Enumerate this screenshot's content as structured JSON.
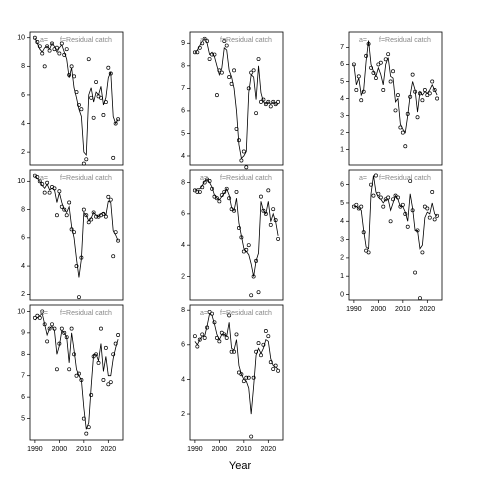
{
  "xlabel": "Year",
  "chart_data": [
    {
      "type": "line",
      "label": "a=",
      "annotation": "f=Residual catch",
      "xlim": [
        1988,
        2026
      ],
      "ylim": [
        1.1,
        10.4
      ],
      "yticks": [
        2,
        4,
        6,
        8,
        10
      ],
      "x": [
        1990,
        1991,
        1992,
        1993,
        1994,
        1995,
        1996,
        1997,
        1998,
        1999,
        2000,
        2001,
        2002,
        2003,
        2004,
        2005,
        2006,
        2007,
        2008,
        2009,
        2010,
        2011,
        2012,
        2013,
        2014,
        2015,
        2016,
        2017,
        2018,
        2019,
        2020,
        2021,
        2022,
        2023,
        2024
      ],
      "series": [
        {
          "style": "points",
          "color": "#000000",
          "values": [
            10,
            9.7,
            9.4,
            8.9,
            8,
            9.4,
            9.1,
            9.6,
            9.2,
            9.3,
            8.9,
            9.6,
            8.8,
            9.2,
            7.4,
            8,
            7.3,
            6.2,
            5.3,
            5,
            1.2,
            1.5,
            8.5,
            5.8,
            4.4,
            6.9,
            5.9,
            5.8,
            4.6,
            5.5,
            7.9,
            7.5,
            1.6,
            4,
            4.3
          ]
        },
        {
          "style": "line",
          "color": "#000000",
          "values": [
            10,
            9.6,
            9.2,
            9,
            9.3,
            9.4,
            9.2,
            9.6,
            9.4,
            9,
            9.3,
            9.5,
            9,
            8.5,
            7.2,
            7.9,
            6.5,
            5.8,
            5,
            4.5,
            2,
            1.8,
            6,
            6.5,
            5.5,
            6.2,
            6,
            6.6,
            5.3,
            5.8,
            7.2,
            7.6,
            4.5,
            4,
            4.3
          ]
        }
      ]
    },
    {
      "type": "line",
      "label": "a=",
      "annotation": "f=Residual catch",
      "xlim": [
        1988,
        2026
      ],
      "ylim": [
        3.6,
        9.5
      ],
      "yticks": [
        4,
        5,
        6,
        7,
        8,
        9
      ],
      "x": [
        1990,
        1991,
        1992,
        1993,
        1994,
        1995,
        1996,
        1997,
        1998,
        1999,
        2000,
        2001,
        2002,
        2003,
        2004,
        2005,
        2006,
        2007,
        2008,
        2009,
        2010,
        2011,
        2012,
        2013,
        2014,
        2015,
        2016,
        2017,
        2018,
        2019,
        2020,
        2021,
        2022,
        2023,
        2024
      ],
      "series": [
        {
          "style": "points",
          "color": "#000000",
          "values": [
            8.6,
            8.6,
            8.8,
            9,
            9.2,
            9.1,
            8.3,
            8.5,
            8.5,
            6.7,
            7.8,
            7.7,
            9.1,
            8.9,
            7.5,
            7.2,
            7.8,
            5.2,
            4.7,
            3.8,
            4.2,
            3.5,
            7,
            7.7,
            7.8,
            5.9,
            8.3,
            6.4,
            6.5,
            6.3,
            6.4,
            6.2,
            6.4,
            6.3,
            6.4
          ]
        },
        {
          "style": "line",
          "color": "#000000",
          "values": [
            8.6,
            8.7,
            8.9,
            9.1,
            9.2,
            9,
            8.5,
            8.6,
            8.4,
            8,
            7.6,
            7.9,
            8.8,
            8.7,
            7.8,
            7.5,
            7,
            6,
            4.5,
            3.9,
            4,
            4.2,
            6.8,
            7.6,
            7.5,
            6.5,
            8,
            6.8,
            6.4,
            6.3,
            6.4,
            6.3,
            6.4,
            6.3,
            6.3
          ]
        }
      ]
    },
    {
      "type": "line",
      "label": "a=",
      "annotation": "f=Residual catch",
      "xlim": [
        1988,
        2026
      ],
      "ylim": [
        0.1,
        7.9
      ],
      "yticks": [
        1,
        2,
        3,
        4,
        5,
        6,
        7
      ],
      "x": [
        1990,
        1991,
        1992,
        1993,
        1994,
        1995,
        1996,
        1997,
        1998,
        1999,
        2000,
        2001,
        2002,
        2003,
        2004,
        2005,
        2006,
        2007,
        2008,
        2009,
        2010,
        2011,
        2012,
        2013,
        2014,
        2015,
        2016,
        2017,
        2018,
        2019,
        2020,
        2021,
        2022,
        2023,
        2024
      ],
      "series": [
        {
          "style": "points",
          "color": "#000000",
          "values": [
            6,
            4.5,
            5.3,
            3.9,
            4.4,
            6.5,
            7.2,
            5.8,
            5.5,
            5.2,
            6,
            6.1,
            4.5,
            6.3,
            6.6,
            5,
            5.6,
            3.3,
            4.2,
            2.3,
            2,
            1.2,
            3.1,
            4.1,
            5.4,
            4.4,
            2.9,
            4.3,
            3.9,
            4.5,
            4.2,
            4.3,
            5,
            4.5,
            4
          ]
        },
        {
          "style": "line",
          "color": "#000000",
          "values": [
            6,
            4.8,
            5.2,
            4.2,
            4.5,
            6.2,
            7.4,
            6,
            5.6,
            5.3,
            5.8,
            5.4,
            4.8,
            6,
            6.4,
            5.3,
            5.2,
            3.8,
            4,
            2.5,
            2.2,
            2,
            3,
            4.2,
            5,
            4.5,
            3.2,
            4.4,
            4.2,
            4.4,
            4.3,
            4.5,
            4.8,
            4.5,
            4.2
          ]
        }
      ]
    },
    {
      "type": "line",
      "label": "a=",
      "annotation": "f=Residual catch",
      "xlim": [
        1988,
        2026
      ],
      "ylim": [
        1.6,
        10.8
      ],
      "yticks": [
        2,
        4,
        6,
        8,
        10
      ],
      "x": [
        1990,
        1991,
        1992,
        1993,
        1994,
        1995,
        1996,
        1997,
        1998,
        1999,
        2000,
        2001,
        2002,
        2003,
        2004,
        2005,
        2006,
        2007,
        2008,
        2009,
        2010,
        2011,
        2012,
        2013,
        2014,
        2015,
        2016,
        2017,
        2018,
        2019,
        2020,
        2021,
        2022,
        2023,
        2024
      ],
      "series": [
        {
          "style": "points",
          "color": "#000000",
          "values": [
            10.4,
            10.3,
            10,
            9.8,
            9.2,
            9.9,
            9.2,
            9.6,
            9.5,
            7.6,
            9.3,
            8.2,
            8,
            7.6,
            8.5,
            6.6,
            6.4,
            4,
            1.8,
            4.6,
            8,
            7.6,
            7.1,
            7.3,
            7.8,
            7.5,
            7.5,
            7.6,
            7.7,
            7.5,
            8.9,
            8.7,
            4.7,
            6.4,
            5.8
          ]
        },
        {
          "style": "line",
          "color": "#000000",
          "values": [
            10.4,
            10.2,
            10,
            9.7,
            9.5,
            9.8,
            9.4,
            9.5,
            9.4,
            8.5,
            9.2,
            8.5,
            8,
            7.8,
            8.2,
            6.8,
            6,
            4.5,
            3.2,
            4.5,
            7.8,
            7.6,
            7.2,
            7.4,
            7.8,
            7.6,
            7.5,
            7.7,
            7.8,
            7.6,
            8.6,
            8.5,
            6.5,
            6.2,
            5.8
          ]
        }
      ]
    },
    {
      "type": "line",
      "label": "a=",
      "annotation": "f=Residual catch",
      "xlim": [
        1988,
        2026
      ],
      "ylim": [
        0.5,
        8.8
      ],
      "yticks": [
        2,
        4,
        6,
        8
      ],
      "x": [
        1990,
        1991,
        1992,
        1993,
        1994,
        1995,
        1996,
        1997,
        1998,
        1999,
        2000,
        2001,
        2002,
        2003,
        2004,
        2005,
        2006,
        2007,
        2008,
        2009,
        2010,
        2011,
        2012,
        2013,
        2014,
        2015,
        2016,
        2017,
        2018,
        2019,
        2020,
        2021,
        2022,
        2023,
        2024
      ],
      "series": [
        {
          "style": "points",
          "color": "#000000",
          "values": [
            7.5,
            7.4,
            7.4,
            7.7,
            8,
            8.2,
            8.1,
            7.6,
            7.1,
            7,
            6.8,
            7.2,
            7.4,
            7.6,
            7,
            6.3,
            6.2,
            7.4,
            5.1,
            4.5,
            3.6,
            3.7,
            4,
            0.8,
            2,
            3,
            1,
            7.1,
            6.2,
            6,
            7.5,
            5.3,
            6.3,
            5.6,
            4.4
          ]
        },
        {
          "style": "line",
          "color": "#000000",
          "values": [
            7.5,
            7.6,
            7.6,
            7.8,
            8.1,
            8.2,
            8,
            7.7,
            7.2,
            7,
            6.9,
            7.1,
            7.3,
            7.6,
            7.2,
            6.4,
            6.2,
            7,
            5.4,
            4.6,
            3.8,
            3.6,
            3.4,
            2.8,
            2,
            3,
            3.5,
            6.8,
            6.2,
            6,
            6.8,
            5.5,
            6,
            5.5,
            4.6
          ]
        }
      ]
    },
    {
      "type": "line",
      "label": "a=",
      "annotation": "f=Residual catch",
      "xlim": [
        1988,
        2026
      ],
      "ylim": [
        -0.3,
        6.8
      ],
      "yticks": [
        0,
        1,
        2,
        3,
        4,
        5,
        6
      ],
      "xticks": [
        1990,
        2000,
        2010,
        2020
      ],
      "x": [
        1990,
        1991,
        1992,
        1993,
        1994,
        1995,
        1996,
        1997,
        1998,
        1999,
        2000,
        2001,
        2002,
        2003,
        2004,
        2005,
        2006,
        2007,
        2008,
        2009,
        2010,
        2011,
        2012,
        2013,
        2014,
        2015,
        2016,
        2017,
        2018,
        2019,
        2020,
        2021,
        2022,
        2023,
        2024
      ],
      "series": [
        {
          "style": "points",
          "color": "#000000",
          "values": [
            4.8,
            4.9,
            4.7,
            4.8,
            3.4,
            2.4,
            2.3,
            6,
            5.4,
            6.5,
            5.5,
            5.3,
            4.8,
            5.2,
            5.3,
            4,
            5.2,
            5.4,
            5.3,
            4.8,
            4.9,
            4.4,
            3.7,
            6.2,
            4.6,
            1.2,
            3.5,
            -0.2,
            2.3,
            4.8,
            4.7,
            4.2,
            5.6,
            4.1,
            4.3
          ]
        },
        {
          "style": "line",
          "color": "#000000",
          "values": [
            4.8,
            4.8,
            4.7,
            4.6,
            3.5,
            2.6,
            2.5,
            5.5,
            6.5,
            5.6,
            5.3,
            5.2,
            5,
            5.2,
            5.2,
            4.6,
            5,
            5.4,
            5.2,
            4.8,
            4.8,
            4.5,
            4,
            5.5,
            4.7,
            3.5,
            3.5,
            2.5,
            2.7,
            4.2,
            4.5,
            4.4,
            5,
            4.4,
            4.3
          ]
        }
      ]
    },
    {
      "type": "line",
      "label": "a=",
      "annotation": "f=Residual catch",
      "xlim": [
        1988,
        2026
      ],
      "ylim": [
        4,
        10.3
      ],
      "yticks": [
        5,
        6,
        7,
        8,
        9,
        10
      ],
      "xticks": [
        1990,
        2000,
        2010,
        2020
      ],
      "x": [
        1990,
        1991,
        1992,
        1993,
        1994,
        1995,
        1996,
        1997,
        1998,
        1999,
        2000,
        2001,
        2002,
        2003,
        2004,
        2005,
        2006,
        2007,
        2008,
        2009,
        2010,
        2011,
        2012,
        2013,
        2014,
        2015,
        2016,
        2017,
        2018,
        2019,
        2020,
        2021,
        2022,
        2023,
        2024
      ],
      "series": [
        {
          "style": "points",
          "color": "#000000",
          "values": [
            9.7,
            9.8,
            9.7,
            10,
            9.4,
            8.6,
            9.2,
            9.4,
            9.2,
            7.3,
            8.5,
            9.2,
            9,
            8.8,
            7.3,
            9.2,
            8,
            7,
            7.1,
            6.8,
            5,
            4.3,
            4.6,
            6.1,
            7.9,
            8,
            7.6,
            9.2,
            6.8,
            8.3,
            6.6,
            6.7,
            8,
            8.5,
            8.9
          ]
        },
        {
          "style": "line",
          "color": "#000000",
          "values": [
            9.6,
            9.7,
            9.8,
            9.9,
            9.4,
            8.9,
            9.2,
            9.3,
            9.1,
            8,
            8.4,
            9.1,
            9,
            8.8,
            7.6,
            9,
            8.2,
            7.3,
            7,
            6.8,
            5.5,
            4.5,
            4.8,
            6.5,
            8,
            8,
            7.7,
            8.5,
            7.2,
            7.9,
            7,
            7,
            7.8,
            8.3,
            8.7
          ]
        }
      ]
    },
    {
      "type": "line",
      "label": "a=",
      "annotation": "f=Residual catch",
      "xlim": [
        1988,
        2026
      ],
      "ylim": [
        0.5,
        8.3
      ],
      "yticks": [
        2,
        4,
        6,
        8
      ],
      "xticks": [
        1990,
        2000,
        2010,
        2020
      ],
      "x": [
        1990,
        1991,
        1992,
        1993,
        1994,
        1995,
        1996,
        1997,
        1998,
        1999,
        2000,
        2001,
        2002,
        2003,
        2004,
        2005,
        2006,
        2007,
        2008,
        2009,
        2010,
        2011,
        2012,
        2013,
        2014,
        2015,
        2016,
        2017,
        2018,
        2019,
        2020,
        2021,
        2022,
        2023,
        2024
      ],
      "series": [
        {
          "style": "points",
          "color": "#000000",
          "values": [
            6.5,
            5.9,
            6.3,
            6.6,
            6.4,
            7,
            7.9,
            7.8,
            7.3,
            6.4,
            6.2,
            6.7,
            6.6,
            6.4,
            7.7,
            5.6,
            5.6,
            6.6,
            4.4,
            4.3,
            3.9,
            4.1,
            4.1,
            0.7,
            4.1,
            5.6,
            6.1,
            5.4,
            6,
            6.8,
            6.5,
            5,
            4.6,
            4.8,
            4.5
          ]
        },
        {
          "style": "line",
          "color": "#000000",
          "values": [
            6.2,
            6,
            6.3,
            6.5,
            6.5,
            7.1,
            7.8,
            7.7,
            7.2,
            6.6,
            6.3,
            6.6,
            6.6,
            6.5,
            7.3,
            5.8,
            5.7,
            6.3,
            4.8,
            4.3,
            4,
            3.9,
            3.5,
            2,
            3.6,
            5.4,
            5.8,
            5.5,
            5.8,
            6.3,
            6.2,
            5.2,
            4.8,
            4.7,
            4.6
          ]
        }
      ]
    }
  ]
}
